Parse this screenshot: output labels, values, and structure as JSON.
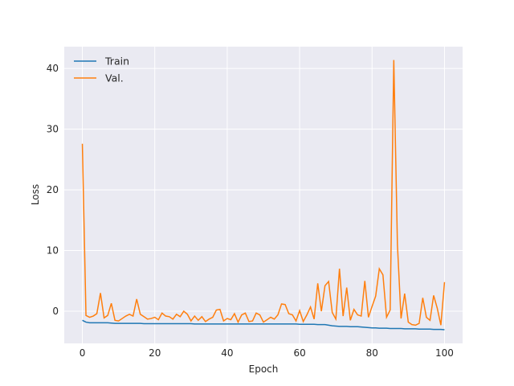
{
  "chart_data": {
    "type": "line",
    "x_label": "Epoch",
    "y_label": "Loss",
    "x": [
      0,
      1,
      2,
      3,
      4,
      5,
      6,
      7,
      8,
      9,
      10,
      11,
      12,
      13,
      14,
      15,
      16,
      17,
      18,
      19,
      20,
      21,
      22,
      23,
      24,
      25,
      26,
      27,
      28,
      29,
      30,
      31,
      32,
      33,
      34,
      35,
      36,
      37,
      38,
      39,
      40,
      41,
      42,
      43,
      44,
      45,
      46,
      47,
      48,
      49,
      50,
      51,
      52,
      53,
      54,
      55,
      56,
      57,
      58,
      59,
      60,
      61,
      62,
      63,
      64,
      65,
      66,
      67,
      68,
      69,
      70,
      71,
      72,
      73,
      74,
      75,
      76,
      77,
      78,
      79,
      80,
      81,
      82,
      83,
      84,
      85,
      86,
      87,
      88,
      89,
      90,
      91,
      92,
      93,
      94,
      95,
      96,
      97,
      98,
      99,
      100
    ],
    "series": [
      {
        "name": "Train",
        "color": "#1f77b4",
        "values": [
          -1.5,
          -1.8,
          -1.9,
          -1.9,
          -1.9,
          -1.9,
          -1.9,
          -1.9,
          -1.95,
          -2.0,
          -2.0,
          -2.0,
          -2.0,
          -2.0,
          -2.0,
          -2.0,
          -2.0,
          -2.05,
          -2.05,
          -2.05,
          -2.05,
          -2.05,
          -2.05,
          -2.05,
          -2.05,
          -2.05,
          -2.05,
          -2.05,
          -2.05,
          -2.05,
          -2.05,
          -2.1,
          -2.1,
          -2.1,
          -2.1,
          -2.1,
          -2.1,
          -2.1,
          -2.1,
          -2.1,
          -2.1,
          -2.1,
          -2.1,
          -2.1,
          -2.1,
          -2.1,
          -2.1,
          -2.1,
          -2.1,
          -2.1,
          -2.1,
          -2.1,
          -2.1,
          -2.1,
          -2.1,
          -2.1,
          -2.1,
          -2.1,
          -2.1,
          -2.1,
          -2.15,
          -2.15,
          -2.15,
          -2.15,
          -2.15,
          -2.2,
          -2.2,
          -2.2,
          -2.3,
          -2.4,
          -2.45,
          -2.5,
          -2.5,
          -2.5,
          -2.55,
          -2.55,
          -2.55,
          -2.6,
          -2.65,
          -2.7,
          -2.75,
          -2.75,
          -2.8,
          -2.8,
          -2.8,
          -2.85,
          -2.85,
          -2.85,
          -2.85,
          -2.9,
          -2.9,
          -2.9,
          -2.9,
          -2.95,
          -2.95,
          -2.95,
          -2.95,
          -3.0,
          -3.0,
          -3.0,
          -3.05
        ]
      },
      {
        "name": "Val.",
        "color": "#ff7f0e",
        "values": [
          27.6,
          -0.7,
          -1.0,
          -0.8,
          -0.4,
          3.0,
          -1.1,
          -0.7,
          1.3,
          -1.5,
          -1.6,
          -1.2,
          -0.8,
          -0.5,
          -0.8,
          2.0,
          -0.5,
          -0.9,
          -1.3,
          -1.2,
          -1.0,
          -1.4,
          -0.3,
          -0.8,
          -0.9,
          -1.3,
          -0.5,
          -0.9,
          0.0,
          -0.5,
          -1.6,
          -0.8,
          -1.5,
          -0.9,
          -1.7,
          -1.3,
          -1.0,
          0.2,
          0.3,
          -1.6,
          -1.2,
          -1.4,
          -0.4,
          -1.8,
          -0.6,
          -0.3,
          -1.7,
          -1.6,
          -0.3,
          -0.6,
          -1.8,
          -1.4,
          -1.0,
          -1.3,
          -0.6,
          1.2,
          1.1,
          -0.4,
          -0.6,
          -1.6,
          0.1,
          -1.7,
          -0.6,
          0.7,
          -1.3,
          4.6,
          0.0,
          4.2,
          4.9,
          -0.2,
          -1.3,
          7.0,
          -0.8,
          3.9,
          -1.5,
          0.3,
          -0.6,
          -0.8,
          5.0,
          -1.0,
          0.8,
          2.5,
          7.0,
          6.0,
          -1.0,
          0.2,
          41.4,
          11.0,
          -1.2,
          2.9,
          -1.8,
          -2.2,
          -2.3,
          -2.0,
          2.2,
          -1.0,
          -1.5,
          2.6,
          0.5,
          -2.3,
          4.8
        ]
      }
    ],
    "xlim": [
      -5,
      105
    ],
    "ylim": [
      -5.3,
      43.6
    ],
    "xticks": [
      0,
      20,
      40,
      60,
      80,
      100
    ],
    "yticks": [
      0,
      10,
      20,
      30,
      40
    ],
    "grid": true,
    "legend": "upper left"
  }
}
